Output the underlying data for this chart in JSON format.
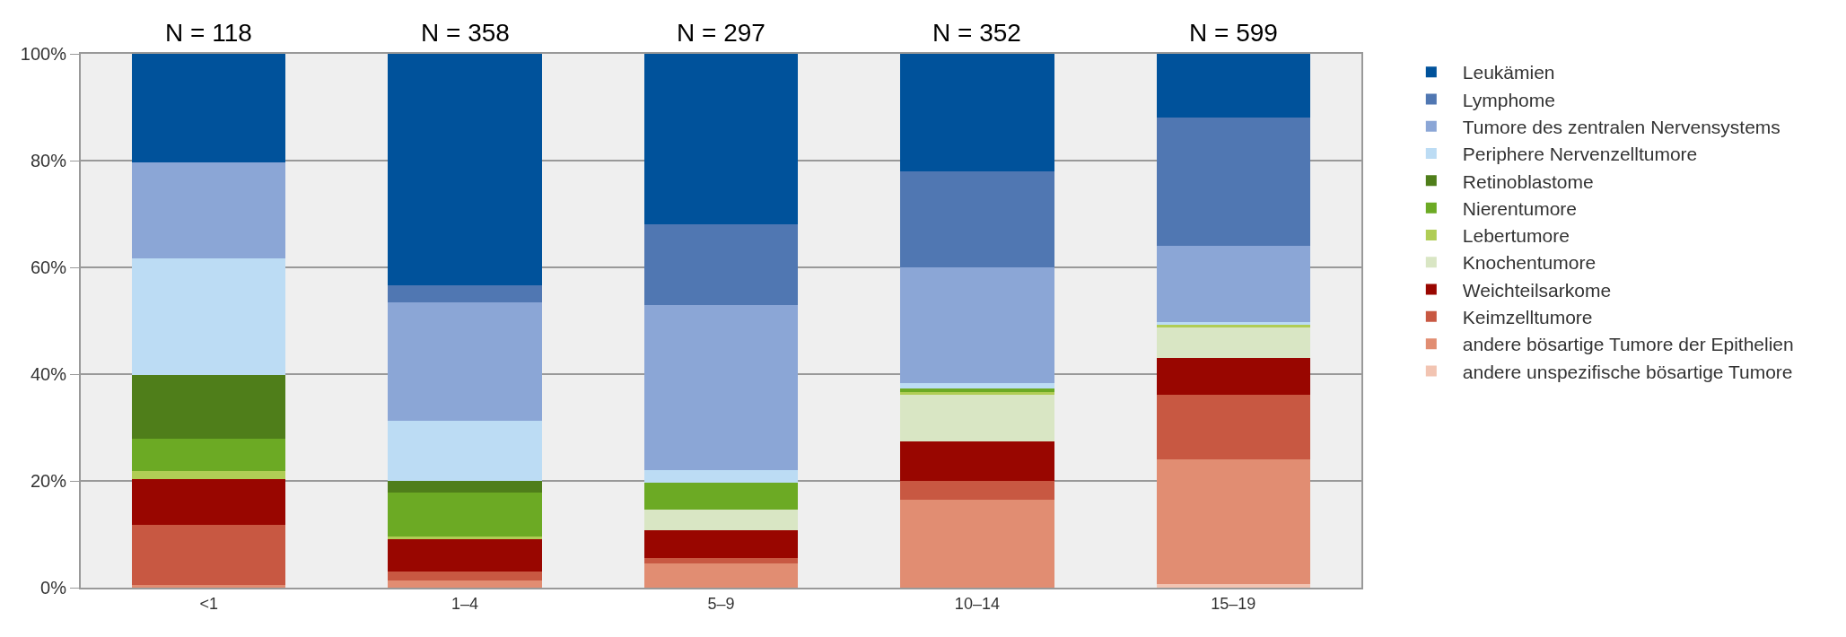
{
  "chart_data": {
    "type": "bar",
    "stacked": true,
    "categories": [
      "<1",
      "1–4",
      "5–9",
      "10–14",
      "15–19"
    ],
    "series": [
      {
        "name": "andere unspezifische bösartige Tumore",
        "color": "#f2c4b2",
        "values": [
          0,
          0,
          0,
          0,
          0.6
        ]
      },
      {
        "name": "andere bösartige Tumore der Epithelien",
        "color": "#e18d72",
        "values": [
          0.5,
          1.3,
          4.6,
          16.5,
          23.5
        ]
      },
      {
        "name": "Keimzelltumore",
        "color": "#c85842",
        "values": [
          11.3,
          1.7,
          0.9,
          3.5,
          12.0
        ]
      },
      {
        "name": "Weichteilsarkome",
        "color": "#990600",
        "values": [
          8.5,
          6.1,
          5.2,
          7.4,
          6.9
        ]
      },
      {
        "name": "Knochentumore",
        "color": "#d9e6c4",
        "values": [
          0,
          0,
          4.0,
          8.9,
          5.9
        ]
      },
      {
        "name": "Lebertumore",
        "color": "#b0cd55",
        "values": [
          1.5,
          0.5,
          0,
          0.3,
          0.3
        ]
      },
      {
        "name": "Nierentumore",
        "color": "#6caa24",
        "values": [
          6.1,
          8.2,
          4.9,
          0.7,
          0
        ]
      },
      {
        "name": "Retinoblastome",
        "color": "#4f7e1a",
        "values": [
          12.0,
          2.2,
          0,
          0,
          0
        ]
      },
      {
        "name": "Periphere Nervenzelltumore",
        "color": "#bcdcf4",
        "values": [
          21.8,
          11.2,
          2.5,
          1.1,
          0.5
        ]
      },
      {
        "name": "Tumore des zentralen Nervensystems",
        "color": "#8ba6d6",
        "values": [
          17.9,
          22.2,
          30.9,
          21.6,
          14.3
        ]
      },
      {
        "name": "Lymphome",
        "color": "#5077b2",
        "values": [
          0,
          3.2,
          15.0,
          18.0,
          24.0
        ]
      },
      {
        "name": "Leukämien",
        "color": "#00529b",
        "values": [
          20.4,
          43.4,
          32.0,
          22.0,
          12.0
        ]
      }
    ],
    "ylim": [
      0,
      100
    ],
    "yticks": [
      {
        "value": 0,
        "label": "0%"
      },
      {
        "value": 20,
        "label": "20%"
      },
      {
        "value": 40,
        "label": "40%"
      },
      {
        "value": 60,
        "label": "60%"
      },
      {
        "value": 80,
        "label": "80%"
      },
      {
        "value": 100,
        "label": "100%"
      }
    ],
    "grid": "y",
    "legend": "right",
    "annotations": [
      {
        "text": "N = 118",
        "x": "<1",
        "y": 100
      },
      {
        "text": "N = 358",
        "x": "1–4",
        "y": 100
      },
      {
        "text": "N = 297",
        "x": "5–9",
        "y": 100
      },
      {
        "text": "N = 352",
        "x": "10–14",
        "y": 100
      },
      {
        "text": "N = 599",
        "x": "15–19",
        "y": 100
      }
    ]
  }
}
